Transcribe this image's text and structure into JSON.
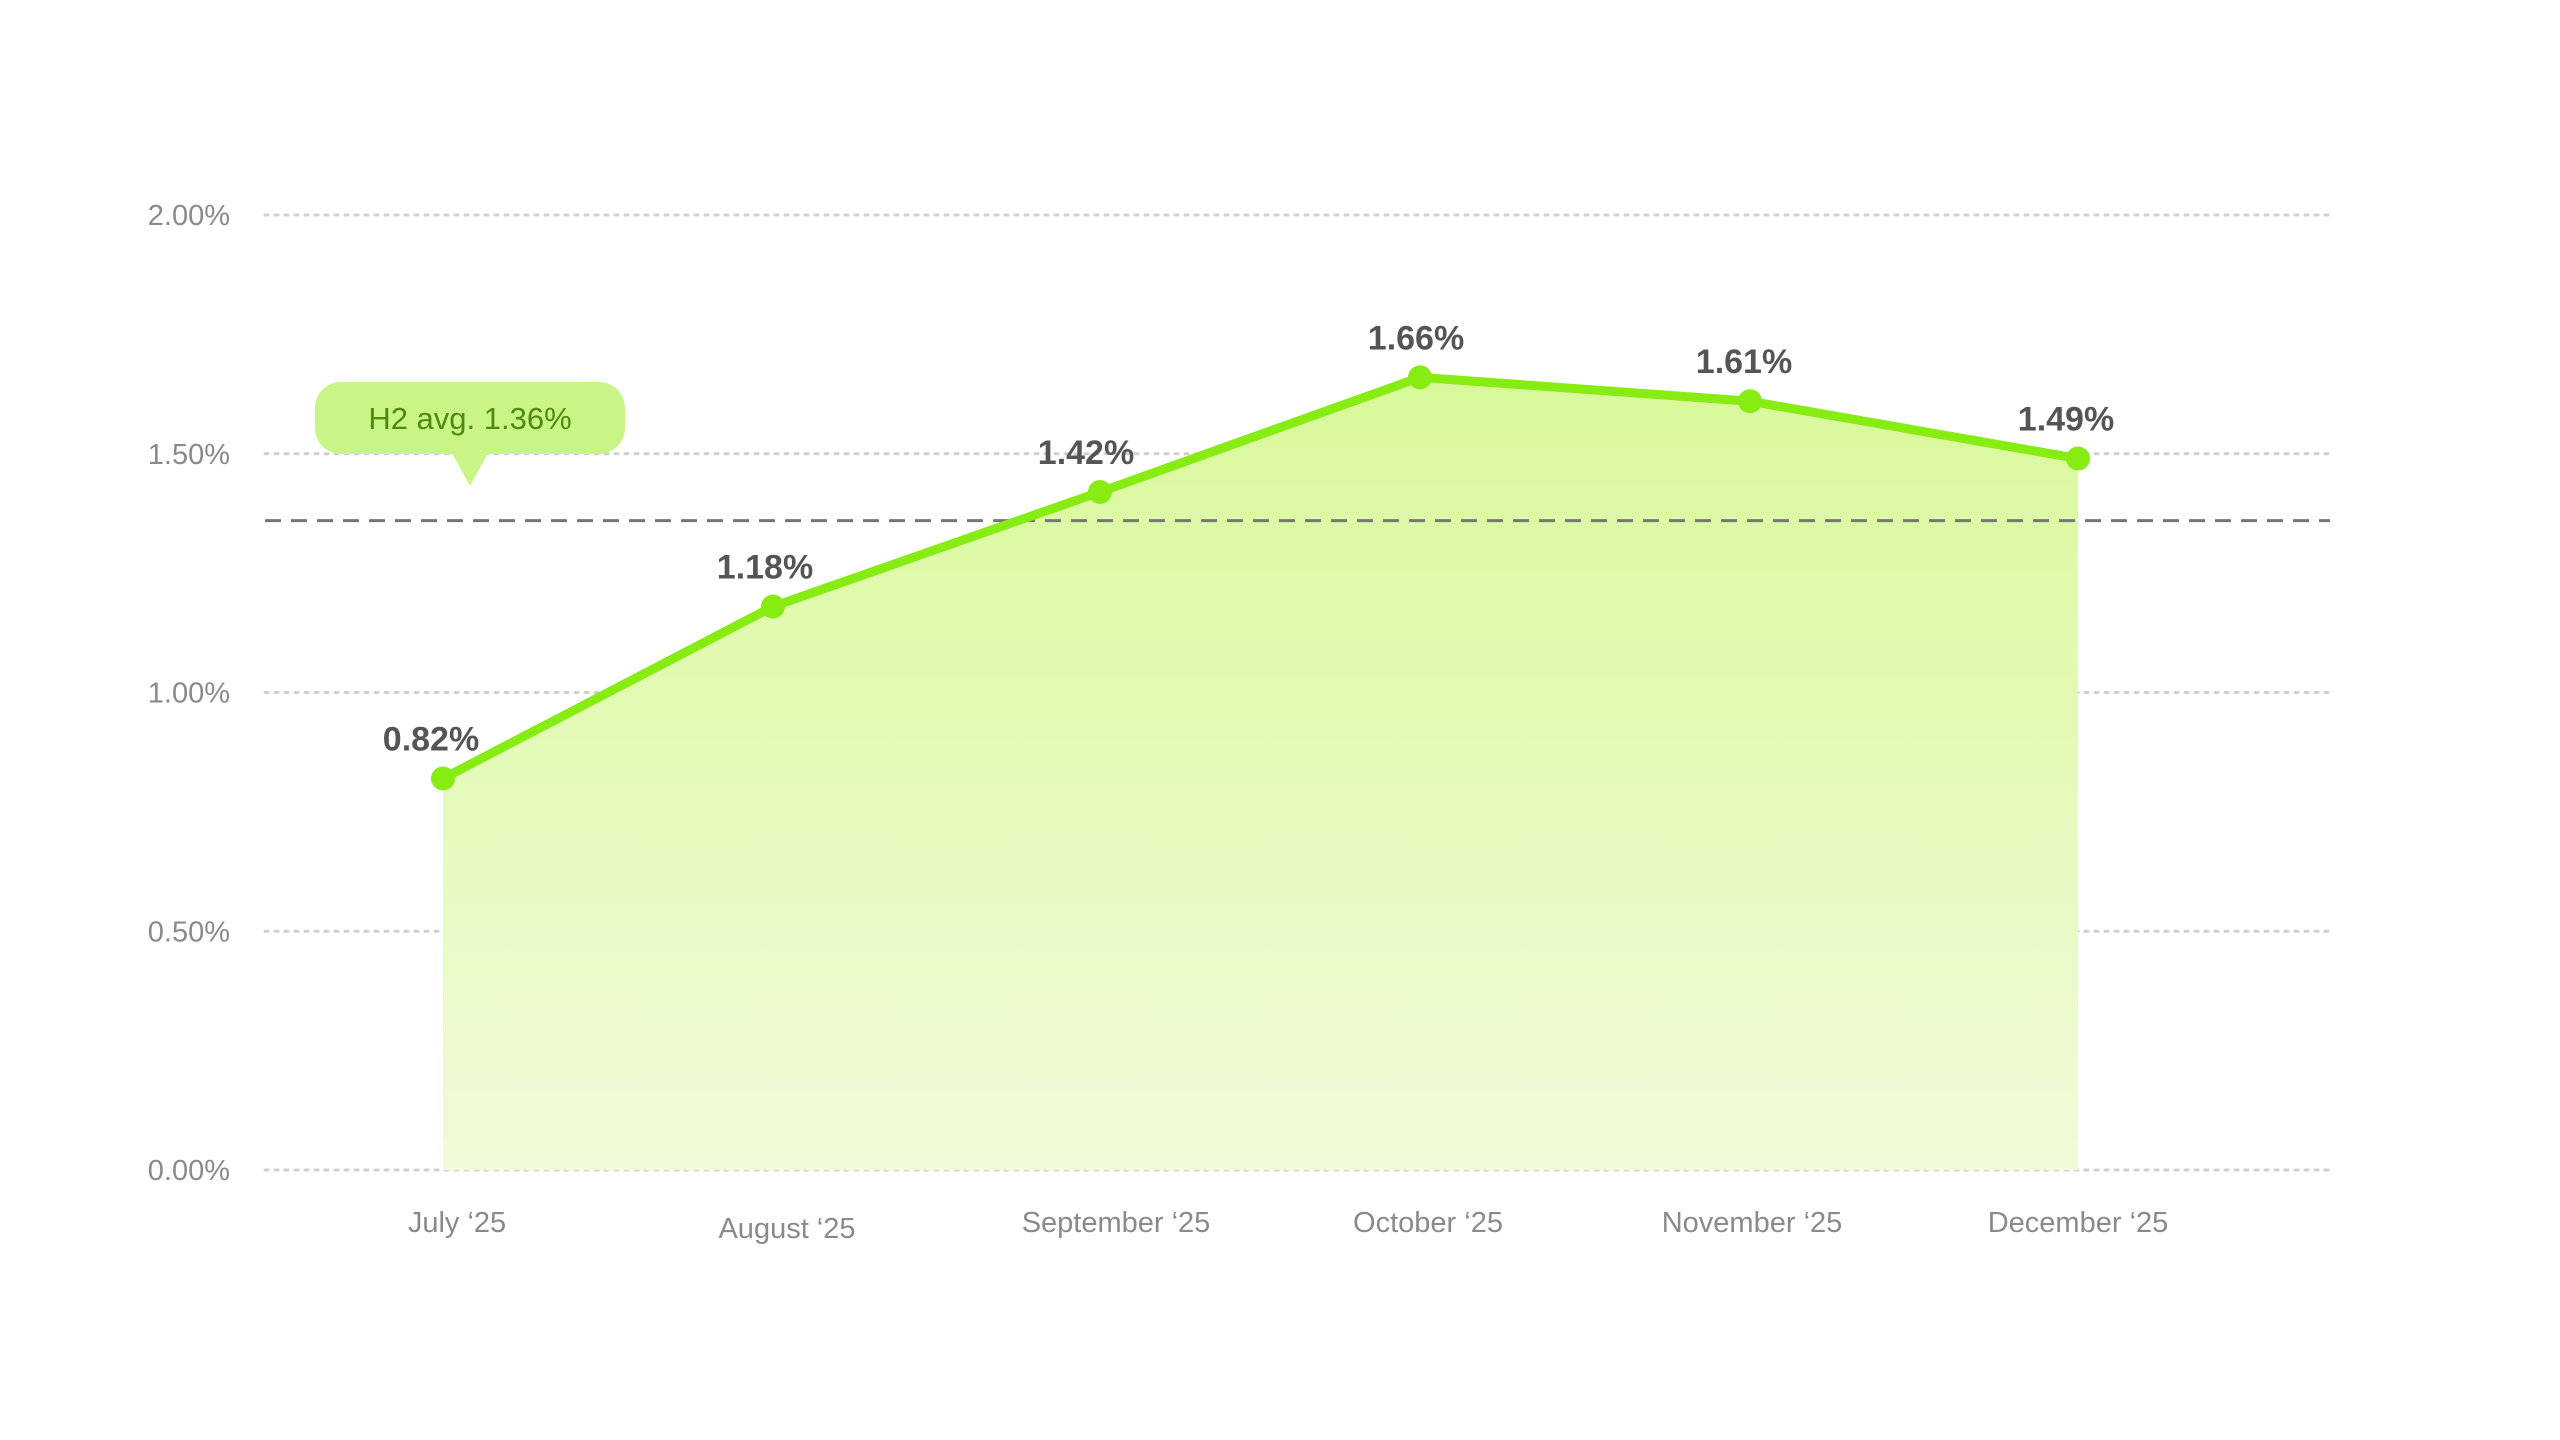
{
  "chart_data": {
    "type": "area",
    "categories": [
      "July ‘25",
      "August ‘25",
      "September ‘25",
      "October ‘25",
      "November ‘25",
      "December ‘25"
    ],
    "series": [
      {
        "values": [
          0.82,
          1.18,
          1.42,
          1.66,
          1.61,
          1.49
        ],
        "labels": [
          "0.82%",
          "1.18%",
          "1.42%",
          "1.66%",
          "1.61%",
          "1.49%"
        ]
      }
    ],
    "ylim": [
      0,
      2
    ],
    "yticks": [
      0,
      0.5,
      1,
      1.5,
      2
    ],
    "ytick_labels": [
      "0.00%",
      "0.50%",
      "1.00%",
      "1.50%",
      "2.00%"
    ],
    "reference_line": {
      "value": 1.36,
      "label": "H2 avg. 1.36%"
    },
    "grid": true,
    "colors": {
      "line": "#86ec12",
      "fill_top": "#d8f99a",
      "fill_bottom": "#f1fbd9",
      "avg_badge": "#c9f486",
      "avg_line": "#777777",
      "grid": "#d0d0d0"
    }
  }
}
